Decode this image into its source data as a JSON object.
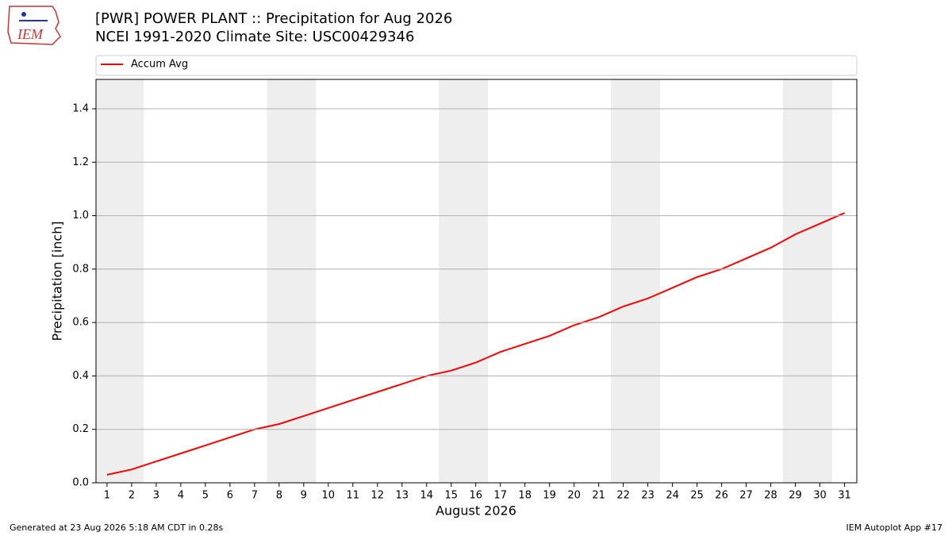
{
  "chart_data": {
    "type": "line",
    "title": "[PWR] POWER PLANT  :: Precipitation for Aug 2026",
    "subtitle": "NCEI 1991-2020 Climate Site: USC00429346",
    "logo_text": "IEM",
    "x_label": "August 2026",
    "y_label": "Precipitation [inch]",
    "footer_left": "Generated at 23 Aug 2026 5:18 AM CDT in 0.28s",
    "footer_right": "IEM Autoplot App #17",
    "x": [
      1,
      2,
      3,
      4,
      5,
      6,
      7,
      8,
      9,
      10,
      11,
      12,
      13,
      14,
      15,
      16,
      17,
      18,
      19,
      20,
      21,
      22,
      23,
      24,
      25,
      26,
      27,
      28,
      29,
      30,
      31
    ],
    "series": [
      {
        "name": "Accum Avg",
        "color": "#ff0000",
        "values": [
          0.03,
          0.05,
          0.08,
          0.11,
          0.14,
          0.17,
          0.2,
          0.22,
          0.25,
          0.28,
          0.31,
          0.34,
          0.37,
          0.4,
          0.42,
          0.45,
          0.49,
          0.52,
          0.55,
          0.59,
          0.62,
          0.66,
          0.69,
          0.73,
          0.77,
          0.8,
          0.84,
          0.88,
          0.93,
          0.97,
          1.01
        ]
      }
    ],
    "xlim": [
      0.55,
      31.5
    ],
    "xticks": [
      1,
      2,
      3,
      4,
      5,
      6,
      7,
      8,
      9,
      10,
      11,
      12,
      13,
      14,
      15,
      16,
      17,
      18,
      19,
      20,
      21,
      22,
      23,
      24,
      25,
      26,
      27,
      28,
      29,
      30,
      31
    ],
    "ylim": [
      0,
      1.51
    ],
    "yticks": [
      {
        "value": 0,
        "label": "0.0"
      },
      0.2,
      0.4,
      0.6,
      0.8,
      {
        "value": 1,
        "label": "1.0"
      },
      1.2,
      1.4
    ],
    "grid": "y",
    "legend": "top",
    "shaded_spans": [
      [
        0.5,
        2.5
      ],
      [
        7.5,
        9.5
      ],
      [
        14.5,
        16.5
      ],
      [
        21.5,
        23.5
      ],
      [
        28.5,
        30.5
      ]
    ],
    "shade_color": "#eeeeee"
  }
}
